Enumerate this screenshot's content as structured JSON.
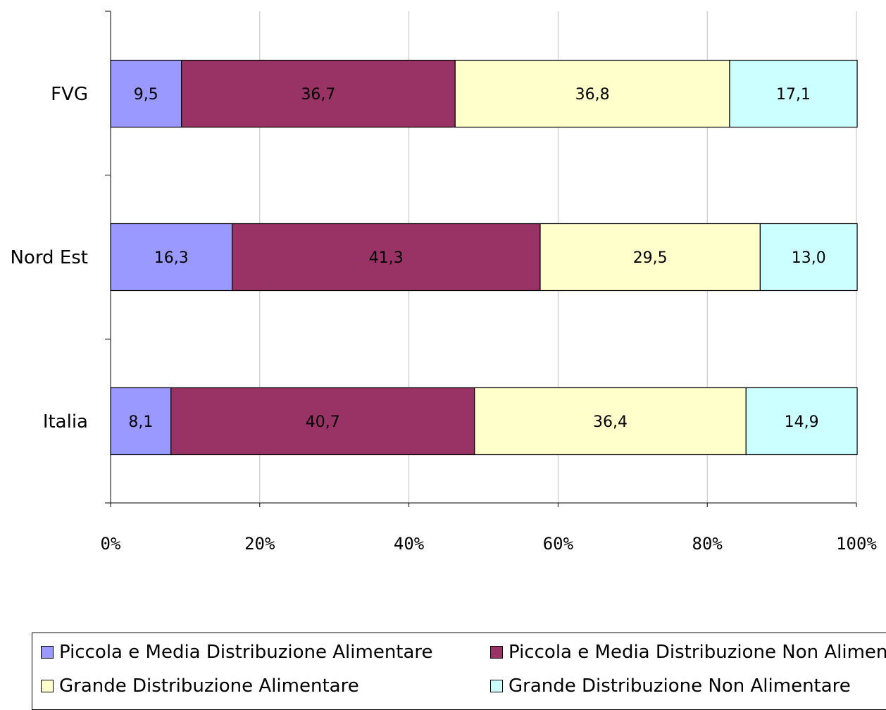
{
  "chart_data": {
    "type": "bar",
    "orientation": "horizontal",
    "stacked": "percent",
    "categories": [
      "FVG",
      "Nord Est",
      "Italia"
    ],
    "series": [
      {
        "name": "Piccola e Media Distribuzione Alimentare",
        "color": "#9999FF",
        "values": [
          9.5,
          16.3,
          8.1
        ],
        "labels": [
          "9,5",
          "16,3",
          "8,1"
        ]
      },
      {
        "name": "Piccola e Media Distribuzione  Non Alimentare",
        "color": "#993366",
        "values": [
          36.7,
          41.3,
          40.7
        ],
        "labels": [
          "36,7",
          "41,3",
          "40,7"
        ]
      },
      {
        "name": "Grande Distribuzione Alimentare",
        "color": "#FFFFCC",
        "values": [
          36.8,
          29.5,
          36.4
        ],
        "labels": [
          "36,8",
          "29,5",
          "36,4"
        ]
      },
      {
        "name": "Grande Distribuzione Non Alimentare",
        "color": "#CCFFFF",
        "values": [
          17.1,
          13.0,
          14.9
        ],
        "labels": [
          "17,1",
          "13,0",
          "14,9"
        ]
      }
    ],
    "xlim": [
      0,
      100
    ],
    "xticks": [
      "0%",
      "20%",
      "40%",
      "60%",
      "80%",
      "100%"
    ],
    "grid": "vertical",
    "legend": "bottom"
  }
}
